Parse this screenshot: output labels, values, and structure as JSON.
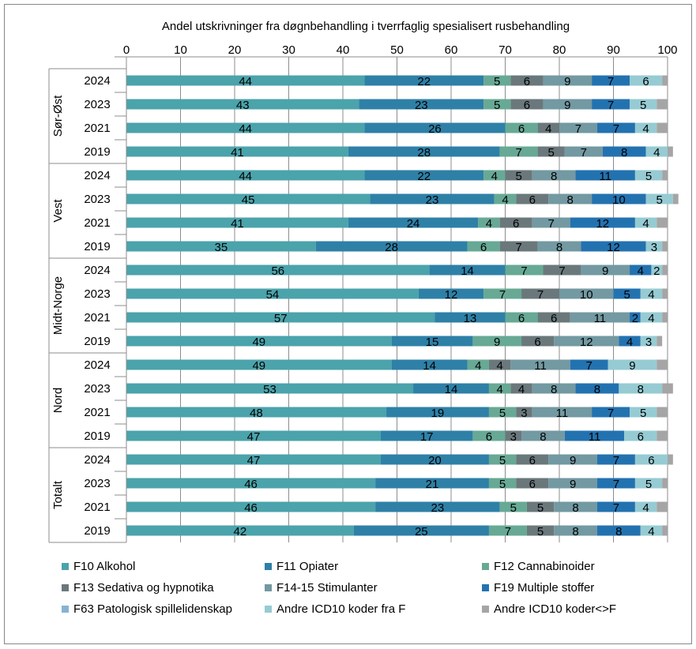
{
  "chart_data": {
    "type": "bar",
    "orientation": "horizontal",
    "stacked": true,
    "title": "Andel utskrivninger fra døgnbehandling i tverrfaglig spesialisert rusbehandling",
    "xlim": [
      0,
      100
    ],
    "xticks": [
      0,
      10,
      20,
      30,
      40,
      50,
      60,
      70,
      80,
      90,
      100
    ],
    "xaxis_position": "top",
    "grid": true,
    "legend_position": "bottom",
    "groups": [
      {
        "name": "Sør-Øst",
        "years": [
          "2024",
          "2023",
          "2021",
          "2019"
        ]
      },
      {
        "name": "Vest",
        "years": [
          "2024",
          "2023",
          "2021",
          "2019"
        ]
      },
      {
        "name": "Midt-Norge",
        "years": [
          "2024",
          "2023",
          "2021",
          "2019"
        ]
      },
      {
        "name": "Nord",
        "years": [
          "2024",
          "2023",
          "2021",
          "2019"
        ]
      },
      {
        "name": "Totalt",
        "years": [
          "2024",
          "2023",
          "2021",
          "2019"
        ]
      }
    ],
    "series": [
      {
        "name": "F10 Alkohol",
        "color": "#4ba3ab",
        "values": [
          44,
          43,
          44,
          41,
          44,
          45,
          41,
          35,
          56,
          54,
          57,
          49,
          49,
          53,
          48,
          47,
          47,
          46,
          46,
          42
        ]
      },
      {
        "name": "F11 Opiater",
        "color": "#2e80a7",
        "values": [
          22,
          23,
          26,
          28,
          22,
          23,
          24,
          28,
          14,
          12,
          13,
          15,
          14,
          14,
          19,
          17,
          20,
          21,
          23,
          25
        ]
      },
      {
        "name": "F12 Cannabinoider",
        "color": "#67a995",
        "values": [
          5,
          5,
          6,
          7,
          4,
          4,
          4,
          6,
          7,
          7,
          6,
          9,
          4,
          4,
          5,
          6,
          5,
          5,
          5,
          7
        ]
      },
      {
        "name": "F13 Sedativa og hypnotika",
        "color": "#6a787c",
        "values": [
          6,
          6,
          4,
          5,
          5,
          6,
          6,
          7,
          7,
          7,
          6,
          6,
          4,
          4,
          3,
          3,
          6,
          6,
          5,
          5
        ]
      },
      {
        "name": "F14-15 Stimulanter",
        "color": "#7399a2",
        "values": [
          9,
          9,
          7,
          7,
          8,
          8,
          7,
          8,
          9,
          10,
          11,
          12,
          11,
          8,
          11,
          8,
          9,
          9,
          8,
          8
        ]
      },
      {
        "name": "F19 Multiple stoffer",
        "color": "#2372b0",
        "values": [
          7,
          7,
          7,
          8,
          11,
          10,
          12,
          12,
          4,
          5,
          2,
          4,
          7,
          8,
          7,
          11,
          7,
          7,
          7,
          8
        ]
      },
      {
        "name": "F63 Patologisk spillelidenskap",
        "color": "#86b4d0",
        "values": [
          0,
          0,
          0,
          0,
          0,
          0,
          0,
          0,
          0,
          0,
          0,
          0,
          0,
          0,
          0,
          0,
          0,
          0,
          0,
          0
        ]
      },
      {
        "name": "Andre ICD10 koder fra F",
        "color": "#96cbd3",
        "values": [
          6,
          5,
          4,
          4,
          5,
          5,
          4,
          3,
          2,
          4,
          4,
          3,
          9,
          8,
          5,
          6,
          6,
          5,
          4,
          4
        ]
      },
      {
        "name": "Andre ICD10 koder<>F",
        "color": "#a5a5a5",
        "values": [
          1,
          2,
          2,
          1,
          1,
          1,
          2,
          1,
          1,
          1,
          1,
          1,
          2,
          2,
          2,
          2,
          1,
          1,
          2,
          1
        ]
      }
    ],
    "label_series": [
      0,
      1,
      2,
      3,
      4,
      5,
      7
    ]
  }
}
